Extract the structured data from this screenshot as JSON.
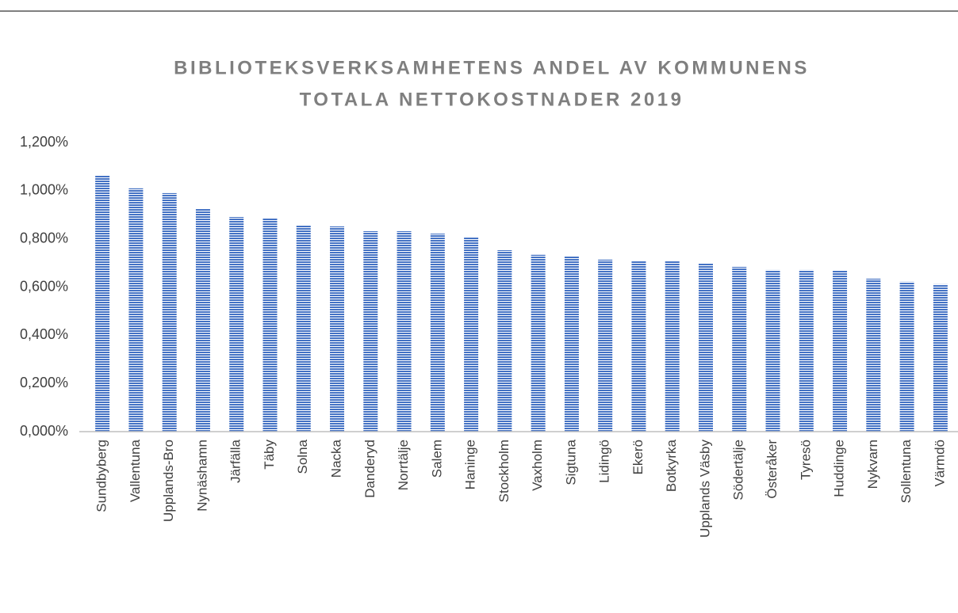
{
  "chart_data": {
    "type": "bar",
    "title": [
      "BIBLIOTEKSVERKSAMHETENS ANDEL AV KOMMUNENS",
      "TOTALA NETTOKOSTNADER 2019"
    ],
    "categories": [
      "Sundbyberg",
      "Vallentuna",
      "Upplands-Bro",
      "Nynäshamn",
      "Järfälla",
      "Täby",
      "Solna",
      "Nacka",
      "Danderyd",
      "Norrtälje",
      "Salem",
      "Haninge",
      "Stockholm",
      "Vaxholm",
      "Sigtuna",
      "Lidingö",
      "Ekerö",
      "Botkyrka",
      "Upplands Väsby",
      "Södertälje",
      "Österåker",
      "Tyresö",
      "Huddinge",
      "Nykvarn",
      "Sollentuna",
      "Värmdö"
    ],
    "values": [
      1.062,
      1.01,
      0.99,
      0.924,
      0.891,
      0.885,
      0.855,
      0.852,
      0.832,
      0.832,
      0.822,
      0.809,
      0.753,
      0.734,
      0.727,
      0.714,
      0.707,
      0.707,
      0.697,
      0.684,
      0.671,
      0.671,
      0.668,
      0.635,
      0.622,
      0.612
    ],
    "color": "#4472c4",
    "ylim": [
      0,
      1.2
    ],
    "yticks": [
      {
        "value": 0,
        "label": "0,000%"
      },
      {
        "value": 0.2,
        "label": "0,200%"
      },
      {
        "value": 0.4,
        "label": "0,400%"
      },
      {
        "value": 0.6,
        "label": "0,600%"
      },
      {
        "value": 0.8,
        "label": "0,800%"
      },
      {
        "value": 1.0,
        "label": "1,000%"
      },
      {
        "value": 1.2,
        "label": "1,200%"
      }
    ],
    "grid": false
  }
}
